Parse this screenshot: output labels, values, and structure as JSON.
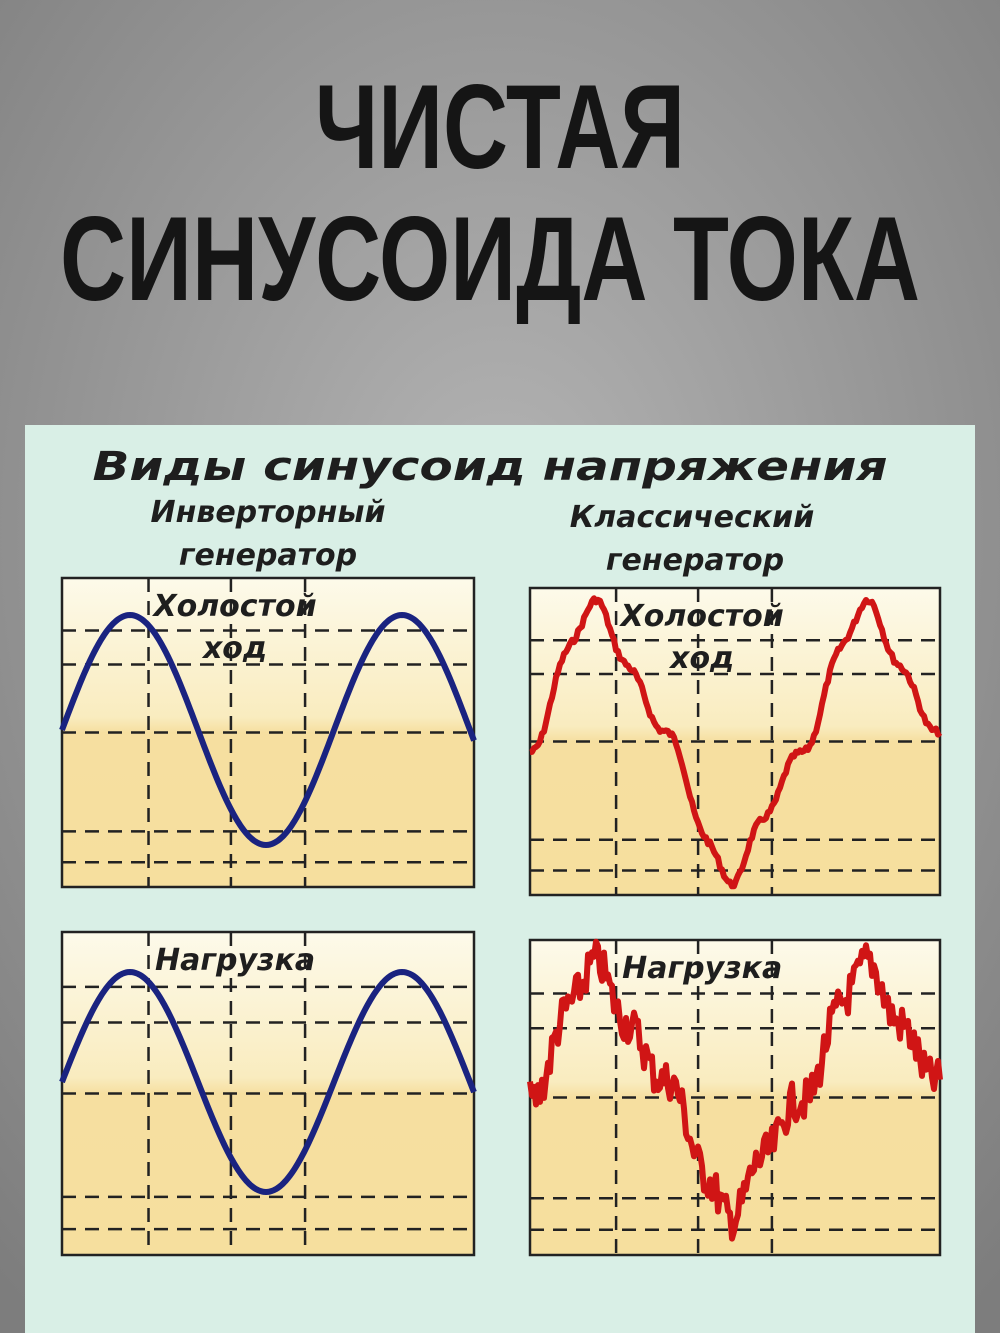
{
  "header": {
    "title_lines": [
      "ЧИСТАЯ",
      "СИНУСОИДА ТОКА"
    ]
  },
  "panel": {
    "title": "Виды синусоид напряжения",
    "columns": [
      {
        "label_lines": [
          "Инверторный",
          "генератор"
        ],
        "plots": [
          {
            "label_lines": [
              "Холостой",
              "ход"
            ]
          },
          {
            "label_lines": [
              "Нагрузка"
            ]
          }
        ]
      },
      {
        "label_lines": [
          "Классический",
          "генератор"
        ],
        "plots": [
          {
            "label_lines": [
              "Холостой",
              "ход"
            ]
          },
          {
            "label_lines": [
              "Нагрузка"
            ]
          }
        ]
      }
    ]
  }
}
